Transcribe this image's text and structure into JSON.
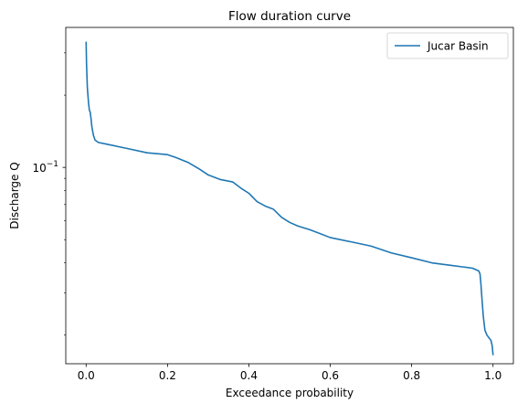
{
  "chart_data": {
    "type": "line",
    "title": "Flow duration curve",
    "xlabel": "Exceedance probability",
    "ylabel": "Discharge Q",
    "xscale": "linear",
    "yscale": "log",
    "xlim": [
      -0.05,
      1.05
    ],
    "ylim": [
      0.0152,
      0.383
    ],
    "xticks": [
      0.0,
      0.2,
      0.4,
      0.6,
      0.8,
      1.0
    ],
    "xticklabels": [
      "0.0",
      "0.2",
      "0.4",
      "0.6",
      "0.8",
      "1.0"
    ],
    "yticks_major": [
      0.1
    ],
    "yticks_minor": [
      0.02,
      0.03,
      0.04,
      0.05,
      0.06,
      0.07,
      0.08,
      0.09,
      0.2,
      0.3
    ],
    "grid": false,
    "legend_position": "upper right",
    "series": [
      {
        "name": "Jucar Basin",
        "color": "#1f77b4",
        "x": [
          0.0,
          0.001,
          0.003,
          0.006,
          0.008,
          0.01,
          0.012,
          0.014,
          0.018,
          0.022,
          0.03,
          0.05,
          0.1,
          0.15,
          0.2,
          0.22,
          0.25,
          0.28,
          0.3,
          0.33,
          0.36,
          0.38,
          0.4,
          0.42,
          0.44,
          0.46,
          0.48,
          0.5,
          0.52,
          0.55,
          0.6,
          0.65,
          0.7,
          0.75,
          0.8,
          0.85,
          0.9,
          0.95,
          0.965,
          0.968,
          0.97,
          0.973,
          0.976,
          0.98,
          0.985,
          0.99,
          0.995,
          0.998,
          1.0
        ],
        "y": [
          0.334,
          0.27,
          0.215,
          0.185,
          0.173,
          0.17,
          0.16,
          0.148,
          0.136,
          0.13,
          0.127,
          0.125,
          0.12,
          0.115,
          0.113,
          0.11,
          0.105,
          0.098,
          0.093,
          0.089,
          0.087,
          0.082,
          0.078,
          0.072,
          0.069,
          0.067,
          0.062,
          0.059,
          0.057,
          0.055,
          0.051,
          0.049,
          0.047,
          0.044,
          0.042,
          0.04,
          0.039,
          0.038,
          0.037,
          0.036,
          0.033,
          0.028,
          0.024,
          0.021,
          0.02,
          0.0195,
          0.019,
          0.018,
          0.0165
        ]
      }
    ]
  }
}
